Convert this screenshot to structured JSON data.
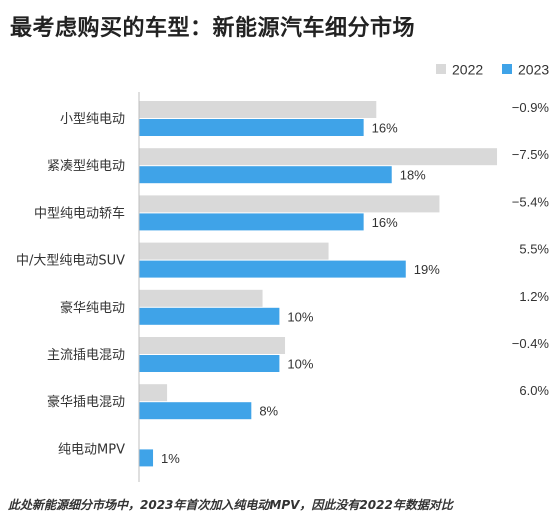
{
  "title": "最考虑购买的车型：新能源汽车细分市场",
  "footnote": "此处新能源细分市场中，2023年首次加入纯电动MPV，因此没有2022年数据对比",
  "colors": {
    "s2022": "#d9d9d9",
    "s2023": "#3fa3e8",
    "axis": "#bfbfbf"
  },
  "chart_data": {
    "type": "bar",
    "orientation": "horizontal",
    "title": "最考虑购买的车型：新能源汽车细分市场",
    "legend": "top-right",
    "categories": [
      "小型纯电动",
      "紧凑型纯电动",
      "中型纯电动轿车",
      "中/大型纯电动SUV",
      "豪华纯电动",
      "主流插电混动",
      "豪华插电混动",
      "纯电动MPV"
    ],
    "xlim": [
      0,
      25
    ],
    "series": [
      {
        "name": "2022",
        "values": [
          16.9,
          25.5,
          21.4,
          13.5,
          8.8,
          10.4,
          2.0,
          null
        ],
        "labels": [
          "",
          "",
          "",
          "",
          "",
          "",
          "",
          ""
        ]
      },
      {
        "name": "2023",
        "values": [
          16,
          18,
          16,
          19,
          10,
          10,
          8,
          1
        ],
        "labels": [
          "16%",
          "18%",
          "16%",
          "19%",
          "10%",
          "10%",
          "8%",
          "1%"
        ]
      }
    ],
    "changes": [
      "−0.9%",
      "−7.5%",
      "−5.4%",
      "5.5%",
      "1.2%",
      "−0.4%",
      "6.0%",
      ""
    ]
  }
}
